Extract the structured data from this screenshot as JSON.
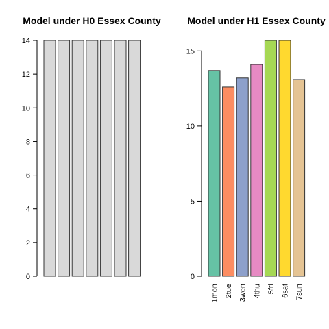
{
  "chart_data": [
    {
      "type": "bar",
      "title": "Model under H0 Essex County",
      "categories": [
        "1mon",
        "2tue",
        "3wen",
        "4thu",
        "5fri",
        "6sat",
        "7sun"
      ],
      "show_category_labels": false,
      "values": [
        14,
        14,
        14,
        14,
        14,
        14,
        14
      ],
      "ylim": [
        0,
        14
      ],
      "yticks": [
        0,
        2,
        4,
        6,
        8,
        10,
        12,
        14
      ],
      "colors": [
        "#d9d9d9",
        "#d9d9d9",
        "#d9d9d9",
        "#d9d9d9",
        "#d9d9d9",
        "#d9d9d9",
        "#d9d9d9"
      ],
      "xlabel": "",
      "ylabel": "",
      "grid": false
    },
    {
      "type": "bar",
      "title": "Model under H1 Essex County",
      "categories": [
        "1mon",
        "2tue",
        "3wen",
        "4thu",
        "5fri",
        "6sat",
        "7sun"
      ],
      "show_category_labels": true,
      "values": [
        13.7,
        12.6,
        13.2,
        14.1,
        15.7,
        15.7,
        13.1
      ],
      "ylim": [
        0,
        15.7
      ],
      "yticks": [
        0,
        5,
        10,
        15
      ],
      "colors": [
        "#66c2a5",
        "#fc8d62",
        "#8da0cb",
        "#e78ac3",
        "#a6d854",
        "#ffd92f",
        "#e5c494"
      ],
      "xlabel": "",
      "ylabel": "",
      "grid": false
    }
  ]
}
